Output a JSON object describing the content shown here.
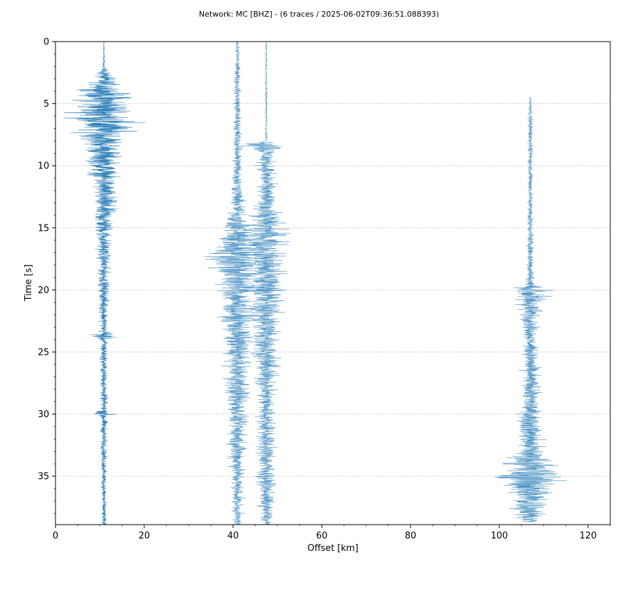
{
  "chart_data": {
    "type": "line",
    "title": "Network: MC [BHZ] - (6 traces / 2025-06-02T09:36:51.088393)",
    "xlabel": "Offset [km]",
    "ylabel": "Time [s]",
    "xlim": [
      0,
      125
    ],
    "ylim": [
      38.9,
      0
    ],
    "y_inverted": true,
    "xticks": [
      0,
      20,
      40,
      60,
      80,
      100,
      120
    ],
    "yticks": [
      0,
      5,
      10,
      15,
      20,
      25,
      30,
      35
    ],
    "grid": "horizontal dotted lines at y ticks",
    "series_color": "#1f77b4",
    "traces": [
      {
        "offset_km": 10.9,
        "start_s": 0,
        "end_s": 38.9,
        "envelope": [
          [
            0,
            0.2
          ],
          [
            2,
            0.3
          ],
          [
            2.5,
            2.2
          ],
          [
            3.5,
            5
          ],
          [
            4.5,
            9
          ],
          [
            5.5,
            10
          ],
          [
            6.5,
            12
          ],
          [
            7.5,
            8
          ],
          [
            8.5,
            6
          ],
          [
            10,
            5
          ],
          [
            11.5,
            4
          ],
          [
            13,
            4
          ],
          [
            14.5,
            3.5
          ],
          [
            16,
            2.5
          ],
          [
            18,
            2
          ],
          [
            22,
            1.5
          ],
          [
            23.3,
            1.3
          ],
          [
            23.6,
            5
          ],
          [
            24,
            1.5
          ],
          [
            26,
            1.2
          ],
          [
            29.7,
            1.2
          ],
          [
            30,
            4
          ],
          [
            30.3,
            1.2
          ],
          [
            33,
            1
          ],
          [
            38.9,
            0.8
          ]
        ]
      },
      {
        "offset_km": 41.0,
        "start_s": 0,
        "end_s": 38.9,
        "envelope": [
          [
            0,
            0.6
          ],
          [
            3,
            1
          ],
          [
            6,
            1.2
          ],
          [
            9,
            1.5
          ],
          [
            12,
            2
          ],
          [
            13,
            2.5
          ],
          [
            14,
            3
          ],
          [
            15,
            5
          ],
          [
            16,
            7
          ],
          [
            17,
            9
          ],
          [
            17.7,
            11
          ],
          [
            18.5,
            8
          ],
          [
            20,
            6
          ],
          [
            23,
            5
          ],
          [
            26,
            4
          ],
          [
            29,
            4
          ],
          [
            30,
            3
          ],
          [
            33,
            3
          ],
          [
            36,
            2
          ],
          [
            38.9,
            1.5
          ]
        ]
      },
      {
        "offset_km": 47.5,
        "start_s": 0,
        "end_s": 38.9,
        "envelope": [
          [
            0,
            0.3
          ],
          [
            8,
            0.4
          ],
          [
            8.3,
            9
          ],
          [
            9,
            3
          ],
          [
            11,
            3
          ],
          [
            13,
            3
          ],
          [
            14,
            5
          ],
          [
            15.5,
            7
          ],
          [
            17,
            6
          ],
          [
            20,
            6
          ],
          [
            23,
            5
          ],
          [
            26,
            4
          ],
          [
            29,
            3
          ],
          [
            32,
            3
          ],
          [
            35,
            3
          ],
          [
            38.9,
            2
          ]
        ]
      },
      {
        "offset_km": 107.0,
        "start_s": 4.5,
        "end_s": 38.7,
        "envelope": [
          [
            4.5,
            0.3
          ],
          [
            6,
            0.8
          ],
          [
            10,
            0.8
          ],
          [
            15,
            1
          ],
          [
            18,
            1.2
          ],
          [
            19.5,
            1.5
          ],
          [
            20,
            7
          ],
          [
            21,
            5
          ],
          [
            22,
            3
          ],
          [
            24,
            2
          ],
          [
            27,
            3
          ],
          [
            29,
            3
          ],
          [
            30,
            3.5
          ],
          [
            32,
            4
          ],
          [
            33,
            5
          ],
          [
            34,
            8
          ],
          [
            35,
            11
          ],
          [
            36,
            8
          ],
          [
            37,
            7
          ],
          [
            38,
            5
          ],
          [
            38.7,
            2
          ]
        ]
      }
    ]
  }
}
